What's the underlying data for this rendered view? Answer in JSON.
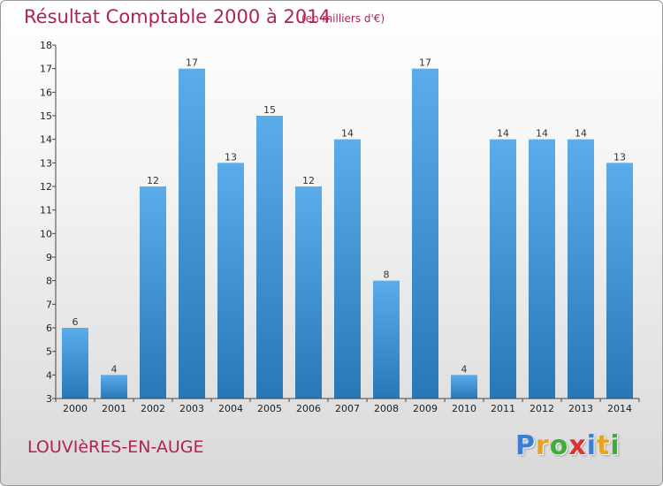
{
  "chart_data": {
    "type": "bar",
    "title": "Résultat Comptable 2000 à 2014",
    "subtitle": "(en milliers d'€)",
    "categories": [
      "2000",
      "2001",
      "2002",
      "2003",
      "2004",
      "2005",
      "2006",
      "2007",
      "2008",
      "2009",
      "2010",
      "2011",
      "2012",
      "2013",
      "2014"
    ],
    "values": [
      6,
      4,
      12,
      17,
      13,
      15,
      12,
      14,
      8,
      17,
      4,
      14,
      14,
      14,
      13
    ],
    "yticks": [
      3,
      4,
      5,
      6,
      7,
      8,
      9,
      10,
      11,
      12,
      13,
      14,
      15,
      16,
      17,
      18
    ],
    "ylim": [
      3,
      18
    ],
    "xlabel": "",
    "ylabel": "",
    "grid": false,
    "bar_color_top": "#5aacea",
    "bar_color_bottom": "#2878b8"
  },
  "commune": "LOUVIèRES-EN-AUGE",
  "logo": {
    "letters": [
      {
        "ch": "P",
        "color": "#3b7fd4"
      },
      {
        "ch": "r",
        "color": "#e8a21c"
      },
      {
        "ch": "o",
        "color": "#3cae3c"
      },
      {
        "ch": "x",
        "color": "#d9322f"
      },
      {
        "ch": "i",
        "color": "#3b7fd4"
      },
      {
        "ch": "t",
        "color": "#e8a21c"
      },
      {
        "ch": "i",
        "color": "#3cae3c"
      }
    ]
  }
}
